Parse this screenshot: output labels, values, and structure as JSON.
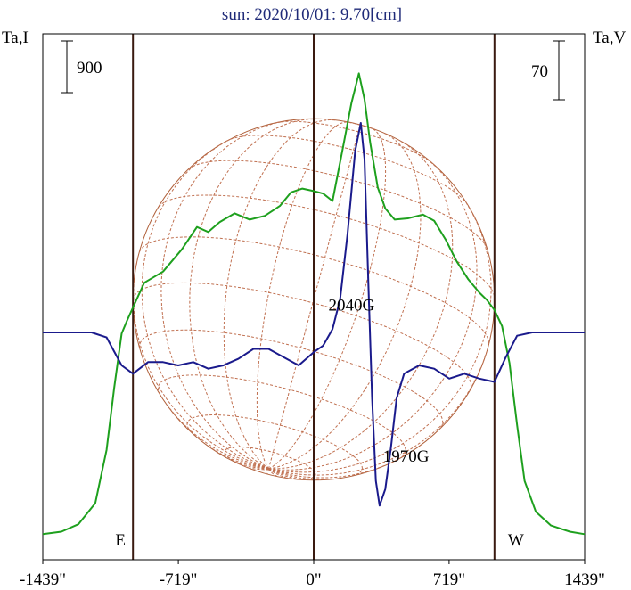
{
  "chart_data": {
    "type": "line",
    "title": "sun: 2020/10/01: 9.70[cm]",
    "left_axis_label": "Ta,I",
    "right_axis_label": "Ta,V",
    "left_scale_bar": "900",
    "right_scale_bar": "70",
    "x_tick_labels": [
      "-1439\"",
      "-719\"",
      "0\"",
      "719\"",
      "1439\""
    ],
    "x_ticks": [
      -1439,
      -719,
      0,
      719,
      1439
    ],
    "xlim": [
      -1439,
      1439
    ],
    "ylim_I": [
      -100,
      2780
    ],
    "ylim_V": [
      -140,
      130
    ],
    "limb_markers": [
      {
        "label": "E",
        "x": -960
      },
      {
        "label": "W",
        "x": 960
      }
    ],
    "annotations": [
      {
        "text": "2040G",
        "x": 40,
        "y": 1870,
        "series": "I"
      },
      {
        "text": "1970G",
        "x": 330,
        "y": -75,
        "series": "V"
      }
    ],
    "colors": {
      "I": "#1ea01e",
      "V": "#1a1a8c",
      "disk": "#b0603a",
      "grid": "#c07050",
      "limb": "#3a1a10"
    },
    "series": [
      {
        "key": "I",
        "color": "#1ea01e",
        "points": [
          [
            -1439,
            20
          ],
          [
            -1340,
            40
          ],
          [
            -1250,
            100
          ],
          [
            -1160,
            270
          ],
          [
            -1100,
            700
          ],
          [
            -1060,
            1200
          ],
          [
            -1020,
            1640
          ],
          [
            -990,
            1750
          ],
          [
            -960,
            1850
          ],
          [
            -900,
            2050
          ],
          [
            -800,
            2140
          ],
          [
            -700,
            2320
          ],
          [
            -620,
            2500
          ],
          [
            -560,
            2460
          ],
          [
            -500,
            2540
          ],
          [
            -420,
            2610
          ],
          [
            -340,
            2560
          ],
          [
            -260,
            2590
          ],
          [
            -180,
            2670
          ],
          [
            -120,
            2780
          ],
          [
            -60,
            2810
          ],
          [
            0,
            2790
          ],
          [
            50,
            2770
          ],
          [
            100,
            2710
          ],
          [
            150,
            3100
          ],
          [
            200,
            3500
          ],
          [
            240,
            3740
          ],
          [
            270,
            3530
          ],
          [
            300,
            3180
          ],
          [
            340,
            2820
          ],
          [
            380,
            2650
          ],
          [
            430,
            2560
          ],
          [
            500,
            2570
          ],
          [
            580,
            2600
          ],
          [
            640,
            2550
          ],
          [
            700,
            2400
          ],
          [
            760,
            2220
          ],
          [
            820,
            2080
          ],
          [
            880,
            1970
          ],
          [
            920,
            1910
          ],
          [
            960,
            1830
          ],
          [
            1000,
            1700
          ],
          [
            1040,
            1400
          ],
          [
            1080,
            900
          ],
          [
            1120,
            450
          ],
          [
            1180,
            200
          ],
          [
            1260,
            90
          ],
          [
            1360,
            40
          ],
          [
            1439,
            20
          ]
        ]
      },
      {
        "key": "V",
        "color": "#1a1a8c",
        "points": [
          [
            -1439,
            0
          ],
          [
            -1300,
            0
          ],
          [
            -1180,
            0
          ],
          [
            -1100,
            -3
          ],
          [
            -1020,
            -20
          ],
          [
            -960,
            -25
          ],
          [
            -880,
            -18
          ],
          [
            -800,
            -18
          ],
          [
            -720,
            -20
          ],
          [
            -640,
            -18
          ],
          [
            -560,
            -22
          ],
          [
            -480,
            -20
          ],
          [
            -400,
            -16
          ],
          [
            -320,
            -10
          ],
          [
            -240,
            -10
          ],
          [
            -160,
            -15
          ],
          [
            -80,
            -20
          ],
          [
            0,
            -12
          ],
          [
            50,
            -8
          ],
          [
            100,
            2
          ],
          [
            140,
            20
          ],
          [
            180,
            60
          ],
          [
            220,
            110
          ],
          [
            250,
            127
          ],
          [
            270,
            105
          ],
          [
            290,
            30
          ],
          [
            310,
            -40
          ],
          [
            330,
            -90
          ],
          [
            350,
            -105
          ],
          [
            380,
            -95
          ],
          [
            410,
            -70
          ],
          [
            440,
            -40
          ],
          [
            480,
            -25
          ],
          [
            560,
            -20
          ],
          [
            640,
            -22
          ],
          [
            720,
            -28
          ],
          [
            800,
            -25
          ],
          [
            880,
            -28
          ],
          [
            960,
            -30
          ],
          [
            1020,
            -15
          ],
          [
            1080,
            -2
          ],
          [
            1160,
            0
          ],
          [
            1300,
            0
          ],
          [
            1439,
            0
          ]
        ]
      }
    ]
  }
}
